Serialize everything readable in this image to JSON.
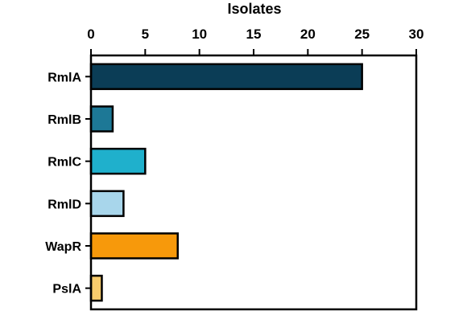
{
  "chart_data": {
    "type": "bar",
    "orientation": "horizontal",
    "title": "",
    "xlabel": "Isolates",
    "ylabel": "",
    "xlim": [
      0,
      30
    ],
    "xticks": [
      "0",
      "5",
      "10",
      "15",
      "20",
      "25",
      "30"
    ],
    "x_axis_position": "top",
    "grid": false,
    "categories": [
      "RmlA",
      "RmlB",
      "RmlC",
      "RmlD",
      "WapR",
      "PslA"
    ],
    "values": [
      25,
      2,
      5,
      3,
      8,
      1
    ],
    "colors": [
      "#0b3d56",
      "#1d7896",
      "#1fb0cc",
      "#a8d6eb",
      "#f7990b",
      "#f8cc6c"
    ]
  }
}
